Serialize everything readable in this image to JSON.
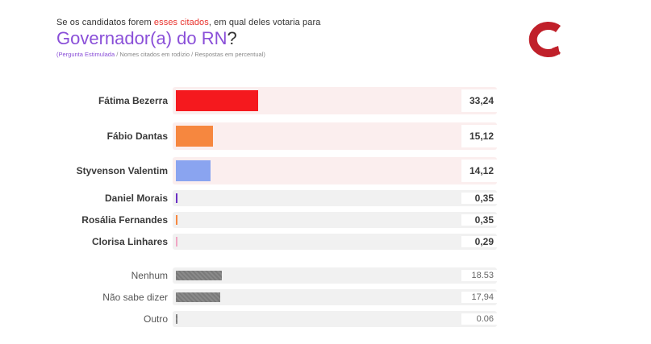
{
  "header": {
    "subtitle_pre": "Se os candidatos forem ",
    "subtitle_hl": "esses citados",
    "subtitle_post": ", em qual deles votaria para",
    "title": "Governador(a) do RN",
    "title_q": "?",
    "note_hl": "(Pergunta Estimulada",
    "note_rest": " / Nomes citados em rodízio /  Respostas em percentual)"
  },
  "colors": {
    "accent_purple": "#8a4fd8",
    "accent_red": "#e8302a",
    "logo_red": "#c0202a"
  },
  "chart_data": {
    "type": "bar",
    "orientation": "horizontal",
    "unit": "%",
    "xlim": [
      0,
      100
    ],
    "categories": [
      "Fátima Bezerra",
      "Fábio Dantas",
      "Styvenson Valentim",
      "Daniel Morais",
      "Rosália Fernandes",
      "Clorisa Linhares",
      "Nenhum",
      "Não sabe dizer",
      "Outro"
    ],
    "bars": [
      {
        "label": "Fátima Bezerra",
        "value": 33.24,
        "value_label": "33,24",
        "color": "#f5191e",
        "group": "main",
        "size": "big"
      },
      {
        "label": "Fábio Dantas",
        "value": 15.12,
        "value_label": "15,12",
        "color": "#f6873f",
        "group": "main",
        "size": "big"
      },
      {
        "label": "Styvenson Valentim",
        "value": 14.12,
        "value_label": "14,12",
        "color": "#8aa4f0",
        "group": "main",
        "size": "big"
      },
      {
        "label": "Daniel Morais",
        "value": 0.35,
        "value_label": "0,35",
        "color": "#6a2fc4",
        "group": "main",
        "size": "small"
      },
      {
        "label": "Rosália Fernandes",
        "value": 0.35,
        "value_label": "0,35",
        "color": "#f6873f",
        "group": "main",
        "size": "small"
      },
      {
        "label": "Clorisa Linhares",
        "value": 0.29,
        "value_label": "0,29",
        "color": "#f0a6c4",
        "group": "main",
        "size": "small"
      },
      {
        "label": "Nenhum",
        "value": 18.53,
        "value_label": "18.53",
        "color": "#7a7a7a",
        "group": "other",
        "size": "small"
      },
      {
        "label": "Não sabe dizer",
        "value": 17.94,
        "value_label": "17,94",
        "color": "#7a7a7a",
        "group": "other",
        "size": "small"
      },
      {
        "label": "Outro",
        "value": 0.06,
        "value_label": "0.06",
        "color": "#7a7a7a",
        "group": "other",
        "size": "small"
      }
    ]
  }
}
